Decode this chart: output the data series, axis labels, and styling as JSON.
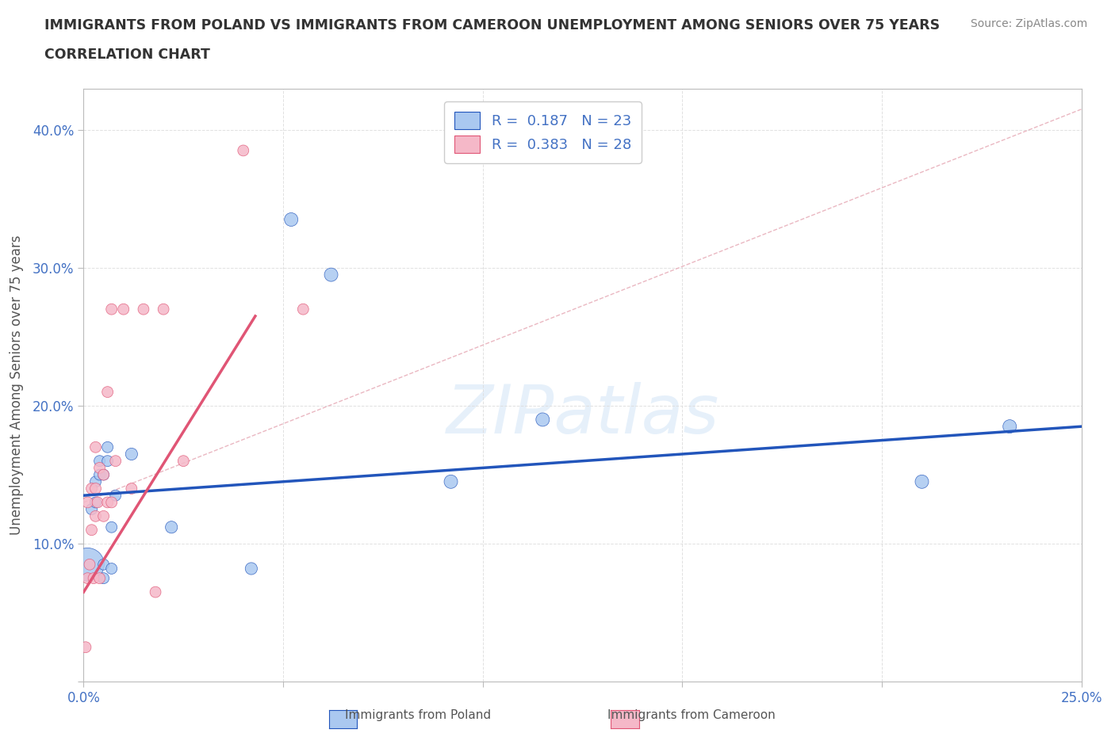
{
  "title_line1": "IMMIGRANTS FROM POLAND VS IMMIGRANTS FROM CAMEROON UNEMPLOYMENT AMONG SENIORS OVER 75 YEARS",
  "title_line2": "CORRELATION CHART",
  "source": "Source: ZipAtlas.com",
  "ylabel": "Unemployment Among Seniors over 75 years",
  "xlim": [
    0,
    0.25
  ],
  "ylim": [
    0,
    0.43
  ],
  "xticks": [
    0.0,
    0.05,
    0.1,
    0.15,
    0.2,
    0.25
  ],
  "yticks": [
    0.0,
    0.1,
    0.2,
    0.3,
    0.4
  ],
  "xtick_labels_show": [
    "0.0%",
    "25.0%"
  ],
  "ytick_labels_show": [
    "10.0%",
    "20.0%",
    "30.0%",
    "40.0%"
  ],
  "watermark": "ZIPatlas",
  "legend_R1": "R =  0.187   N = 23",
  "legend_R2": "R =  0.383   N = 28",
  "poland_color": "#aac8f0",
  "cameroon_color": "#f5b8c8",
  "poland_line_color": "#2255bb",
  "cameroon_line_color": "#e05575",
  "ref_line_color": "#e8b0bb",
  "poland_x": [
    0.001,
    0.002,
    0.003,
    0.003,
    0.004,
    0.004,
    0.005,
    0.005,
    0.005,
    0.006,
    0.006,
    0.007,
    0.007,
    0.008,
    0.012,
    0.022,
    0.042,
    0.052,
    0.062,
    0.092,
    0.115,
    0.21,
    0.232
  ],
  "poland_y": [
    0.085,
    0.125,
    0.145,
    0.13,
    0.15,
    0.16,
    0.075,
    0.085,
    0.15,
    0.16,
    0.17,
    0.082,
    0.112,
    0.135,
    0.165,
    0.112,
    0.082,
    0.335,
    0.295,
    0.145,
    0.19,
    0.145,
    0.185
  ],
  "poland_size": [
    900,
    100,
    100,
    100,
    100,
    100,
    100,
    100,
    100,
    100,
    100,
    100,
    100,
    100,
    120,
    120,
    120,
    150,
    150,
    150,
    150,
    150,
    150
  ],
  "cameroon_x": [
    0.0005,
    0.001,
    0.001,
    0.0015,
    0.002,
    0.002,
    0.0025,
    0.003,
    0.003,
    0.003,
    0.0035,
    0.004,
    0.004,
    0.005,
    0.005,
    0.006,
    0.006,
    0.007,
    0.007,
    0.008,
    0.01,
    0.012,
    0.015,
    0.018,
    0.02,
    0.025,
    0.04,
    0.055
  ],
  "cameroon_y": [
    0.025,
    0.075,
    0.13,
    0.085,
    0.11,
    0.14,
    0.075,
    0.12,
    0.14,
    0.17,
    0.13,
    0.155,
    0.075,
    0.12,
    0.15,
    0.13,
    0.21,
    0.13,
    0.27,
    0.16,
    0.27,
    0.14,
    0.27,
    0.065,
    0.27,
    0.16,
    0.385,
    0.27
  ],
  "cameroon_size": [
    100,
    100,
    100,
    100,
    100,
    100,
    100,
    100,
    100,
    100,
    100,
    100,
    100,
    100,
    100,
    100,
    100,
    100,
    100,
    100,
    100,
    100,
    100,
    100,
    100,
    100,
    100,
    100
  ],
  "poland_trendline_x": [
    0.0,
    0.25
  ],
  "poland_trendline_y": [
    0.135,
    0.185
  ],
  "cameroon_trendline_x": [
    0.0,
    0.043
  ],
  "cameroon_trendline_y": [
    0.065,
    0.265
  ],
  "ref_line_x": [
    0.0,
    0.25
  ],
  "ref_line_y": [
    0.13,
    0.415
  ]
}
